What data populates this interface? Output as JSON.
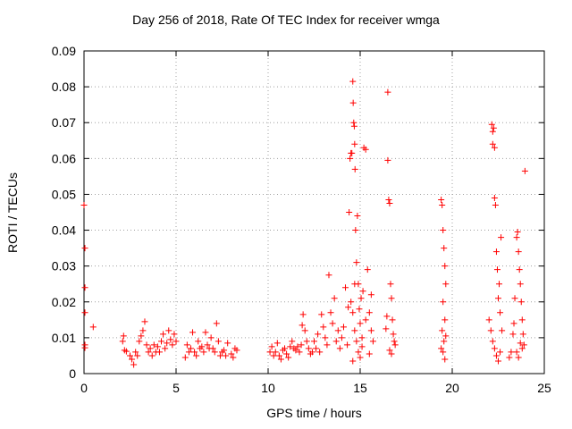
{
  "chart_data": {
    "type": "scatter",
    "title": "Day 256 of 2018, Rate Of TEC Index for receiver wmga",
    "xlabel": "GPS time / hours",
    "ylabel": "ROTI / TECUs",
    "xlim": [
      0,
      25
    ],
    "ylim": [
      0,
      0.09
    ],
    "x_ticks": [
      0,
      5,
      10,
      15,
      20,
      25
    ],
    "x_tick_labels": [
      "0",
      "5",
      "10",
      "15",
      "20",
      "25"
    ],
    "y_ticks": [
      0,
      0.01,
      0.02,
      0.03,
      0.04,
      0.05,
      0.06,
      0.07,
      0.08,
      0.09
    ],
    "y_tick_labels": [
      "0",
      "0.01",
      "0.02",
      "0.03",
      "0.04",
      "0.05",
      "0.06",
      "0.07",
      "0.08",
      "0.09"
    ],
    "grid": true,
    "marker": "+",
    "color": "#ff0000",
    "series": [
      {
        "name": "ROTI",
        "points": [
          [
            0.0,
            0.047
          ],
          [
            0.05,
            0.035
          ],
          [
            0.05,
            0.024
          ],
          [
            0.05,
            0.017
          ],
          [
            0.05,
            0.008
          ],
          [
            0.05,
            0.0072
          ],
          [
            0.5,
            0.013
          ],
          [
            2.1,
            0.009
          ],
          [
            2.15,
            0.0105
          ],
          [
            2.2,
            0.0065
          ],
          [
            2.3,
            0.0062
          ],
          [
            2.5,
            0.005
          ],
          [
            2.6,
            0.004
          ],
          [
            2.7,
            0.0025
          ],
          [
            2.8,
            0.006
          ],
          [
            2.9,
            0.005
          ],
          [
            3.0,
            0.009
          ],
          [
            3.1,
            0.0105
          ],
          [
            3.2,
            0.012
          ],
          [
            3.3,
            0.0145
          ],
          [
            3.4,
            0.008
          ],
          [
            3.5,
            0.006
          ],
          [
            3.6,
            0.007
          ],
          [
            3.7,
            0.005
          ],
          [
            3.8,
            0.008
          ],
          [
            3.9,
            0.006
          ],
          [
            4.0,
            0.0075
          ],
          [
            4.1,
            0.006
          ],
          [
            4.2,
            0.009
          ],
          [
            4.3,
            0.011
          ],
          [
            4.4,
            0.007
          ],
          [
            4.5,
            0.0085
          ],
          [
            4.6,
            0.012
          ],
          [
            4.7,
            0.0095
          ],
          [
            4.8,
            0.008
          ],
          [
            4.9,
            0.011
          ],
          [
            5.0,
            0.009
          ],
          [
            5.5,
            0.0045
          ],
          [
            5.6,
            0.008
          ],
          [
            5.7,
            0.006
          ],
          [
            5.8,
            0.007
          ],
          [
            5.9,
            0.0115
          ],
          [
            6.0,
            0.006
          ],
          [
            6.1,
            0.005
          ],
          [
            6.2,
            0.009
          ],
          [
            6.3,
            0.007
          ],
          [
            6.4,
            0.0075
          ],
          [
            6.5,
            0.006
          ],
          [
            6.6,
            0.0115
          ],
          [
            6.7,
            0.008
          ],
          [
            6.8,
            0.007
          ],
          [
            6.9,
            0.01
          ],
          [
            7.0,
            0.007
          ],
          [
            7.1,
            0.006
          ],
          [
            7.2,
            0.014
          ],
          [
            7.3,
            0.009
          ],
          [
            7.4,
            0.005
          ],
          [
            7.5,
            0.006
          ],
          [
            7.6,
            0.0065
          ],
          [
            7.7,
            0.005
          ],
          [
            7.8,
            0.0085
          ],
          [
            8.0,
            0.0055
          ],
          [
            8.1,
            0.0045
          ],
          [
            8.2,
            0.007
          ],
          [
            8.3,
            0.0065
          ],
          [
            10.1,
            0.006
          ],
          [
            10.2,
            0.0075
          ],
          [
            10.3,
            0.005
          ],
          [
            10.4,
            0.006
          ],
          [
            10.5,
            0.0085
          ],
          [
            10.6,
            0.005
          ],
          [
            10.7,
            0.004
          ],
          [
            10.8,
            0.0065
          ],
          [
            10.9,
            0.007
          ],
          [
            11.0,
            0.0055
          ],
          [
            11.1,
            0.0045
          ],
          [
            11.2,
            0.0075
          ],
          [
            11.3,
            0.009
          ],
          [
            11.4,
            0.007
          ],
          [
            11.5,
            0.0065
          ],
          [
            11.6,
            0.0075
          ],
          [
            11.7,
            0.006
          ],
          [
            11.8,
            0.008
          ],
          [
            11.85,
            0.0135
          ],
          [
            11.9,
            0.0165
          ],
          [
            12.0,
            0.012
          ],
          [
            12.1,
            0.009
          ],
          [
            12.2,
            0.007
          ],
          [
            12.3,
            0.0055
          ],
          [
            12.4,
            0.006
          ],
          [
            12.5,
            0.009
          ],
          [
            12.6,
            0.007
          ],
          [
            12.7,
            0.011
          ],
          [
            12.8,
            0.006
          ],
          [
            12.9,
            0.0165
          ],
          [
            13.0,
            0.013
          ],
          [
            13.1,
            0.01
          ],
          [
            13.2,
            0.008
          ],
          [
            13.3,
            0.0275
          ],
          [
            13.4,
            0.017
          ],
          [
            13.5,
            0.014
          ],
          [
            13.6,
            0.021
          ],
          [
            13.7,
            0.009
          ],
          [
            13.8,
            0.012
          ],
          [
            13.9,
            0.007
          ],
          [
            14.0,
            0.01
          ],
          [
            14.1,
            0.013
          ],
          [
            14.2,
            0.024
          ],
          [
            14.3,
            0.008
          ],
          [
            14.35,
            0.0185
          ],
          [
            14.4,
            0.045
          ],
          [
            14.45,
            0.06
          ],
          [
            14.5,
            0.0615
          ],
          [
            14.55,
            0.0615
          ],
          [
            14.6,
            0.0815
          ],
          [
            14.62,
            0.0755
          ],
          [
            14.65,
            0.07
          ],
          [
            14.68,
            0.069
          ],
          [
            14.7,
            0.064
          ],
          [
            14.72,
            0.057
          ],
          [
            14.75,
            0.04
          ],
          [
            14.8,
            0.031
          ],
          [
            14.85,
            0.044
          ],
          [
            14.9,
            0.025
          ],
          [
            14.95,
            0.018
          ],
          [
            15.0,
            0.014
          ],
          [
            15.05,
            0.021
          ],
          [
            15.1,
            0.01
          ],
          [
            15.15,
            0.023
          ],
          [
            15.2,
            0.063
          ],
          [
            15.3,
            0.0625
          ],
          [
            15.4,
            0.029
          ],
          [
            15.5,
            0.017
          ],
          [
            15.6,
            0.012
          ],
          [
            15.7,
            0.009
          ],
          [
            14.5,
            0.02
          ],
          [
            14.6,
            0.017
          ],
          [
            14.7,
            0.012
          ],
          [
            14.8,
            0.009
          ],
          [
            14.9,
            0.006
          ],
          [
            15.0,
            0.0045
          ],
          [
            14.6,
            0.0035
          ],
          [
            14.7,
            0.025
          ],
          [
            15.1,
            0.0075
          ],
          [
            15.3,
            0.015
          ],
          [
            15.5,
            0.0055
          ],
          [
            15.6,
            0.022
          ],
          [
            16.4,
            0.0125
          ],
          [
            16.45,
            0.016
          ],
          [
            16.5,
            0.0785
          ],
          [
            16.5,
            0.0595
          ],
          [
            16.55,
            0.0485
          ],
          [
            16.6,
            0.0475
          ],
          [
            16.65,
            0.025
          ],
          [
            16.7,
            0.021
          ],
          [
            16.75,
            0.015
          ],
          [
            16.8,
            0.011
          ],
          [
            16.85,
            0.009
          ],
          [
            16.9,
            0.008
          ],
          [
            16.6,
            0.0065
          ],
          [
            16.7,
            0.0055
          ],
          [
            19.4,
            0.0485
          ],
          [
            19.45,
            0.047
          ],
          [
            19.5,
            0.04
          ],
          [
            19.55,
            0.035
          ],
          [
            19.6,
            0.03
          ],
          [
            19.65,
            0.025
          ],
          [
            19.5,
            0.02
          ],
          [
            19.6,
            0.015
          ],
          [
            19.45,
            0.012
          ],
          [
            19.55,
            0.009
          ],
          [
            19.5,
            0.006
          ],
          [
            19.6,
            0.004
          ],
          [
            19.4,
            0.007
          ],
          [
            19.65,
            0.0105
          ],
          [
            22.0,
            0.015
          ],
          [
            22.1,
            0.012
          ],
          [
            22.15,
            0.0695
          ],
          [
            22.2,
            0.0675
          ],
          [
            22.25,
            0.0685
          ],
          [
            22.2,
            0.064
          ],
          [
            22.3,
            0.063
          ],
          [
            22.3,
            0.049
          ],
          [
            22.35,
            0.047
          ],
          [
            22.4,
            0.034
          ],
          [
            22.45,
            0.029
          ],
          [
            22.5,
            0.021
          ],
          [
            22.55,
            0.025
          ],
          [
            22.6,
            0.017
          ],
          [
            22.65,
            0.038
          ],
          [
            22.7,
            0.012
          ],
          [
            22.2,
            0.009
          ],
          [
            22.3,
            0.007
          ],
          [
            22.4,
            0.005
          ],
          [
            22.5,
            0.0035
          ],
          [
            22.6,
            0.006
          ],
          [
            23.1,
            0.0045
          ],
          [
            23.2,
            0.006
          ],
          [
            23.3,
            0.011
          ],
          [
            23.35,
            0.014
          ],
          [
            23.4,
            0.021
          ],
          [
            23.5,
            0.038
          ],
          [
            23.55,
            0.0395
          ],
          [
            23.6,
            0.034
          ],
          [
            23.65,
            0.029
          ],
          [
            23.7,
            0.025
          ],
          [
            23.75,
            0.02
          ],
          [
            23.8,
            0.015
          ],
          [
            23.85,
            0.011
          ],
          [
            23.9,
            0.008
          ],
          [
            23.95,
            0.0565
          ],
          [
            23.5,
            0.006
          ],
          [
            23.6,
            0.0045
          ],
          [
            23.7,
            0.0085
          ],
          [
            23.8,
            0.007
          ]
        ]
      }
    ]
  }
}
